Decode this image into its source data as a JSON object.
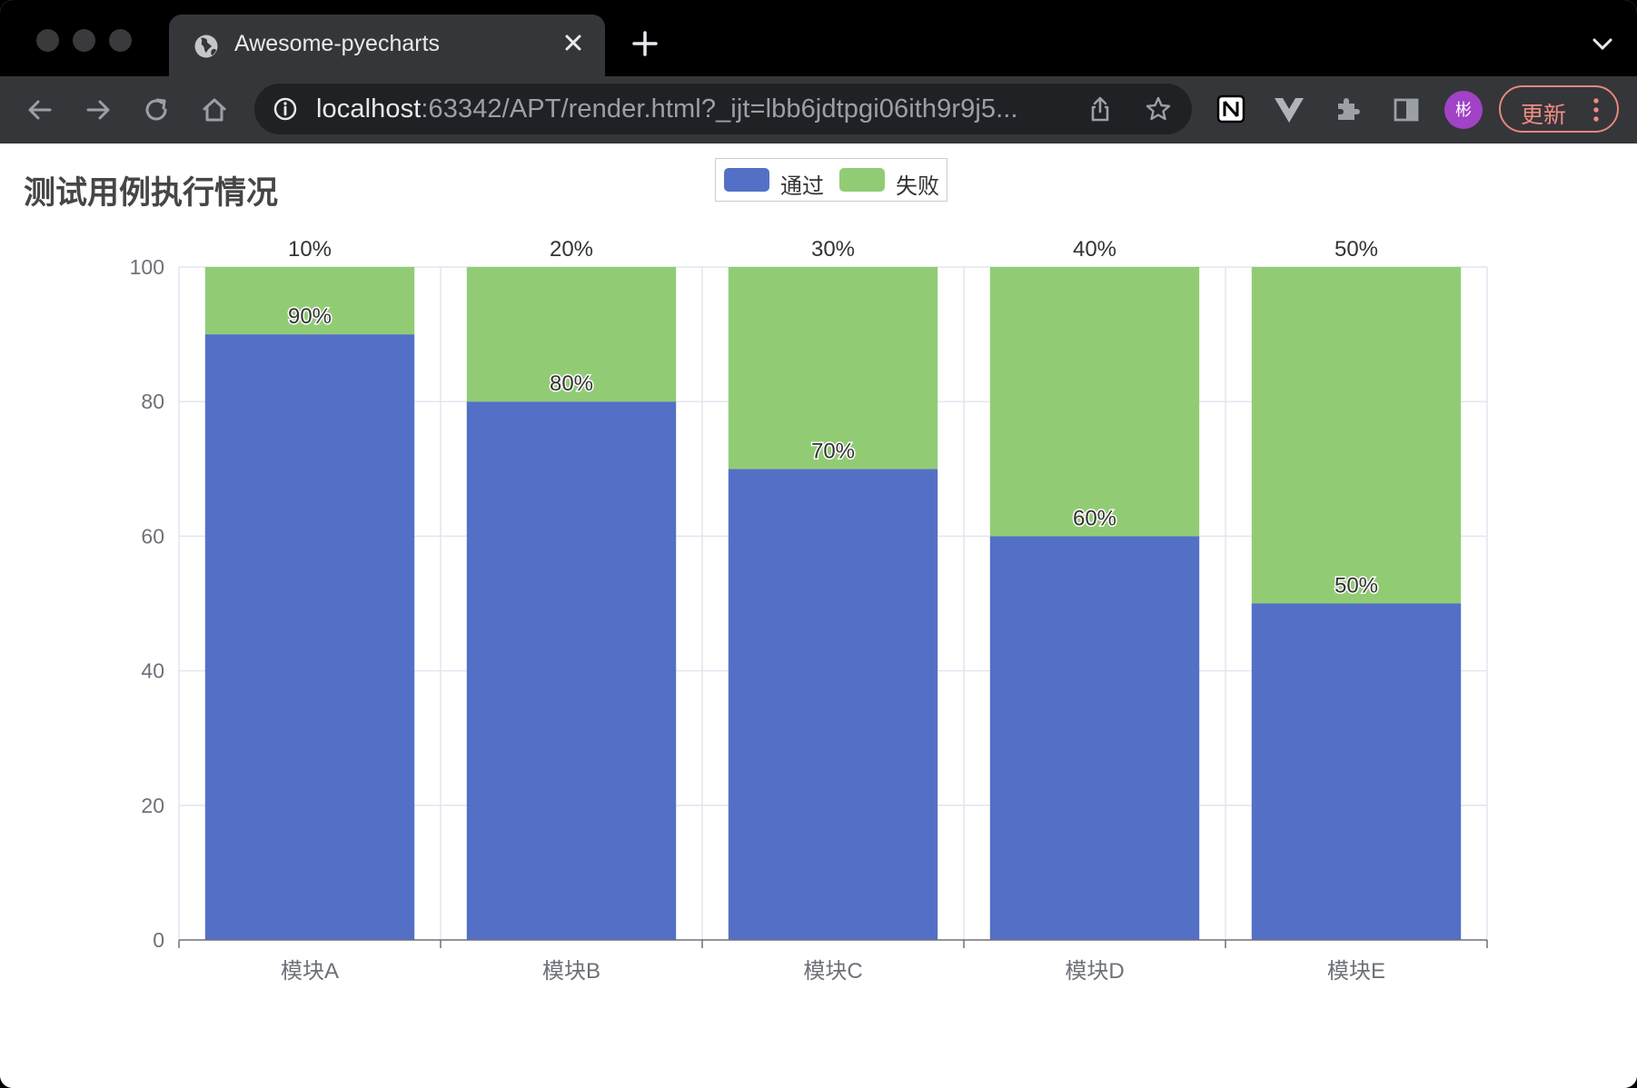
{
  "browser": {
    "tab_title": "Awesome-pyecharts",
    "url_host": "localhost",
    "url_rest": ":63342/APT/render.html?_ijt=lbb6jdtpgi06ith9r9j5...",
    "avatar_letter": "彬",
    "update_label": "更新"
  },
  "icons": {
    "tab": "globe-icon",
    "close": "close-icon",
    "new_tab": "plus-icon",
    "back": "back-arrow-icon",
    "forward": "forward-arrow-icon",
    "reload": "reload-icon",
    "home": "home-icon",
    "site_info": "info-icon",
    "share": "share-icon",
    "bookmark": "star-icon",
    "notion": "notion-icon",
    "vue": "vue-devtools-icon",
    "extensions": "puzzle-icon",
    "side_panel": "side-panel-icon",
    "menu": "kebab-menu-icon"
  },
  "chart_data": {
    "type": "bar",
    "stacked": true,
    "title": "测试用例执行情况",
    "categories": [
      "模块A",
      "模块B",
      "模块C",
      "模块D",
      "模块E"
    ],
    "series": [
      {
        "name": "通过",
        "color": "#5470c6",
        "values": [
          90,
          80,
          70,
          60,
          50
        ],
        "labels": [
          "90%",
          "80%",
          "70%",
          "60%",
          "50%"
        ]
      },
      {
        "name": "失败",
        "color": "#91cc75",
        "values": [
          10,
          20,
          30,
          40,
          50
        ],
        "labels": [
          "10%",
          "20%",
          "30%",
          "40%",
          "50%"
        ]
      }
    ],
    "ylim": [
      0,
      100
    ],
    "yticks": [
      0,
      20,
      40,
      60,
      80,
      100
    ],
    "grid": true,
    "legend_position": "top-center"
  }
}
